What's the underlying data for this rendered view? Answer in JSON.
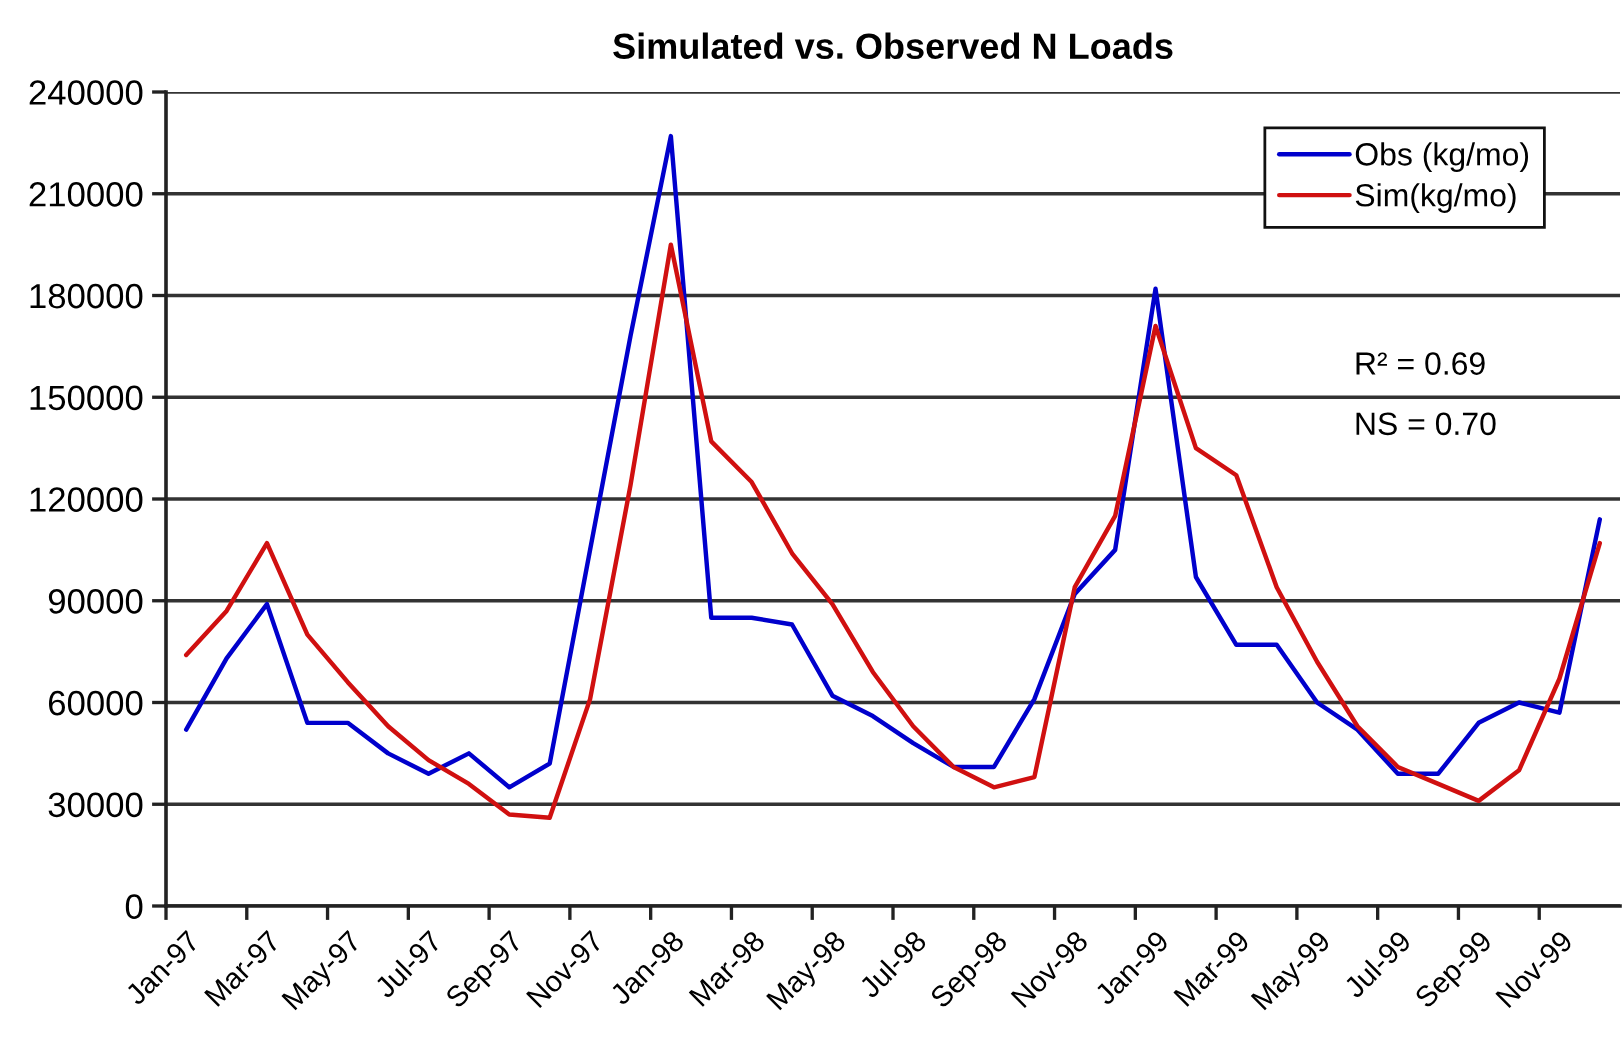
{
  "chart_data": {
    "type": "line",
    "title": "Simulated vs. Observed N Loads",
    "categories": [
      "Jan-97",
      null,
      "Mar-97",
      null,
      "May-97",
      null,
      "Jul-97",
      null,
      "Sep-97",
      null,
      "Nov-97",
      null,
      "Jan-98",
      null,
      "Mar-98",
      null,
      "May-98",
      null,
      "Jul-98",
      null,
      "Sep-98",
      null,
      "Nov-98",
      null,
      "Jan-99",
      null,
      "Mar-99",
      null,
      "May-99",
      null,
      "Jul-99",
      null,
      "Sep-99",
      null,
      "Nov-99",
      null
    ],
    "series": [
      {
        "name": "Obs (kg/mo)",
        "color": "#0000cc",
        "values": [
          52000,
          73000,
          89000,
          54000,
          54000,
          45000,
          39000,
          45000,
          35000,
          42000,
          105000,
          168000,
          227000,
          85000,
          85000,
          83000,
          62000,
          56000,
          48000,
          41000,
          41000,
          61000,
          92000,
          105000,
          182000,
          97000,
          77000,
          77000,
          60000,
          52000,
          39000,
          39000,
          54000,
          60000,
          57000,
          114000
        ]
      },
      {
        "name": "Sim(kg/mo)",
        "color": "#d01010",
        "values": [
          74000,
          87000,
          107000,
          80000,
          66000,
          53000,
          43000,
          36000,
          27000,
          26000,
          61000,
          124000,
          195000,
          137000,
          125000,
          104000,
          89000,
          69000,
          53000,
          41000,
          35000,
          38000,
          94000,
          115000,
          171000,
          135000,
          127000,
          94000,
          72000,
          53000,
          41000,
          36000,
          31000,
          40000,
          67000,
          107000
        ]
      }
    ],
    "ylim": [
      0,
      240000
    ],
    "yticks": [
      0,
      30000,
      60000,
      90000,
      120000,
      150000,
      180000,
      210000,
      240000
    ],
    "grid": "y",
    "legend": "top right",
    "marker": "none",
    "line_style": "solid",
    "annotations": [
      "R² = 0.69",
      "NS = 0.70"
    ]
  }
}
